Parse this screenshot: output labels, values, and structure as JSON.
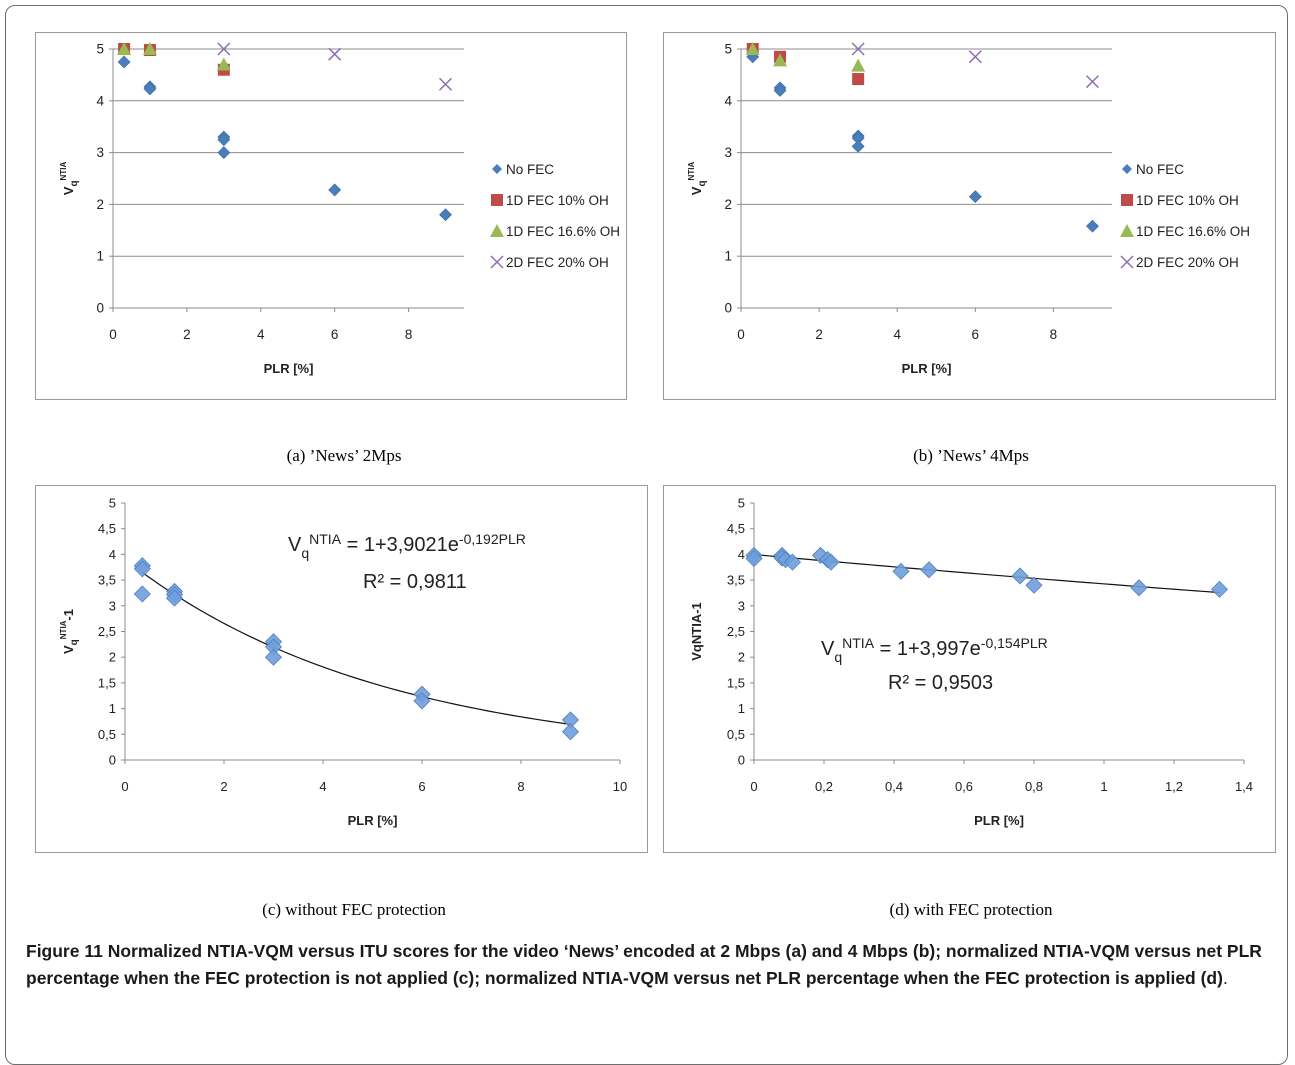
{
  "chart_data": [
    {
      "type": "scatter",
      "id": "a",
      "subcaption": "(a)  ’News’ 2Mps",
      "ylabel_main": "V",
      "ylabel_sub": "q",
      "ylabel_sup": "NTIA",
      "xlabel": "PLR [%]",
      "xlim": [
        0,
        9.5
      ],
      "ylim": [
        0,
        5
      ],
      "xticks": [
        "0",
        "2",
        "4",
        "6",
        "8"
      ],
      "xtick_values": [
        0,
        2,
        4,
        6,
        8
      ],
      "yticks": [
        "0",
        "1",
        "2",
        "3",
        "4",
        "5"
      ],
      "ytick_values": [
        0,
        1,
        2,
        3,
        4,
        5
      ],
      "grid": "horizontal",
      "legend_position": "right",
      "series": [
        {
          "name": "No FEC",
          "marker": "diamond",
          "color": "#4a7ebb",
          "points": [
            [
              0.3,
              4.75
            ],
            [
              1,
              4.27
            ],
            [
              1,
              4.23
            ],
            [
              3,
              3.3
            ],
            [
              3,
              3.25
            ],
            [
              3,
              3.0
            ],
            [
              6,
              2.28
            ],
            [
              9,
              1.8
            ]
          ]
        },
        {
          "name": "1D FEC 10% OH",
          "marker": "square",
          "color": "#be4b48",
          "points": [
            [
              0.3,
              5.0
            ],
            [
              1,
              4.98
            ],
            [
              3,
              4.6
            ]
          ]
        },
        {
          "name": "1D FEC 16.6% OH",
          "marker": "triangle",
          "color": "#98b954",
          "points": [
            [
              0.3,
              5.0
            ],
            [
              1,
              5.0
            ],
            [
              3,
              4.7
            ]
          ]
        },
        {
          "name": "2D FEC 20% OH",
          "marker": "x",
          "color": "#8c6fb0",
          "points": [
            [
              3,
              5.0
            ],
            [
              6,
              4.9
            ],
            [
              9,
              4.32
            ]
          ]
        }
      ]
    },
    {
      "type": "scatter",
      "id": "b",
      "subcaption": "(b)  ’News’ 4Mps",
      "ylabel_main": "V",
      "ylabel_sub": "q",
      "ylabel_sup": "NTIA",
      "xlabel": "PLR [%]",
      "xlim": [
        0,
        9.5
      ],
      "ylim": [
        0,
        5
      ],
      "xticks": [
        "0",
        "2",
        "4",
        "6",
        "8"
      ],
      "xtick_values": [
        0,
        2,
        4,
        6,
        8
      ],
      "yticks": [
        "0",
        "1",
        "2",
        "3",
        "4",
        "5"
      ],
      "ytick_values": [
        0,
        1,
        2,
        3,
        4,
        5
      ],
      "grid": "horizontal",
      "legend_position": "right",
      "series": [
        {
          "name": "No FEC",
          "marker": "diamond",
          "color": "#4a7ebb",
          "points": [
            [
              0.3,
              4.85
            ],
            [
              1,
              4.25
            ],
            [
              1,
              4.2
            ],
            [
              3,
              3.32
            ],
            [
              3,
              3.28
            ],
            [
              3,
              3.12
            ],
            [
              6,
              2.15
            ],
            [
              9,
              1.58
            ]
          ]
        },
        {
          "name": "1D FEC 10% OH",
          "marker": "square",
          "color": "#be4b48",
          "points": [
            [
              0.3,
              5.0
            ],
            [
              1,
              4.85
            ],
            [
              3,
              4.42
            ]
          ]
        },
        {
          "name": "1D FEC 16.6% OH",
          "marker": "triangle",
          "color": "#98b954",
          "points": [
            [
              0.3,
              5.0
            ],
            [
              1,
              4.78
            ],
            [
              3,
              4.68
            ]
          ]
        },
        {
          "name": "2D FEC 20% OH",
          "marker": "x",
          "color": "#8c6fb0",
          "points": [
            [
              3,
              5.0
            ],
            [
              6,
              4.85
            ],
            [
              9,
              4.37
            ]
          ]
        }
      ]
    },
    {
      "type": "scatter",
      "id": "c",
      "subcaption": "(c)  without FEC protection",
      "ylabel_main": "V",
      "ylabel_sub": "q",
      "ylabel_sup": "NTIA",
      "ylabel_tail": "-1",
      "xlabel": "PLR [%]",
      "xlim": [
        0,
        10
      ],
      "ylim": [
        0,
        5
      ],
      "xticks": [
        "0",
        "2",
        "4",
        "6",
        "8",
        "10"
      ],
      "xtick_values": [
        0,
        2,
        4,
        6,
        8,
        10
      ],
      "yticks": [
        "0",
        "0,5",
        "1",
        "1,5",
        "2",
        "2,5",
        "3",
        "3,5",
        "4",
        "4,5",
        "5"
      ],
      "ytick_values": [
        0,
        0.5,
        1,
        1.5,
        2,
        2.5,
        3,
        3.5,
        4,
        4.5,
        5
      ],
      "grid": "none",
      "equation_main": "V",
      "equation_sub": "q",
      "equation_sup": "NTIA",
      "equation_rest": " = 1+3,9021e",
      "equation_exp": "-0,192PLR",
      "r2": "R² = 0,9811",
      "trend": {
        "a": 3.9021,
        "b": -0.192,
        "offset": -1,
        "x_from": 0.3,
        "x_to": 9
      },
      "series": [
        {
          "name": "",
          "marker": "diamond-large",
          "color": "#6f9fdb",
          "points": [
            [
              0.35,
              3.78
            ],
            [
              0.35,
              3.72
            ],
            [
              0.35,
              3.23
            ],
            [
              1,
              3.28
            ],
            [
              1,
              3.22
            ],
            [
              1,
              3.15
            ],
            [
              3,
              2.3
            ],
            [
              3,
              2.2
            ],
            [
              3,
              2.0
            ],
            [
              6,
              1.28
            ],
            [
              6,
              1.15
            ],
            [
              9,
              0.78
            ],
            [
              9,
              0.55
            ]
          ]
        }
      ]
    },
    {
      "type": "scatter",
      "id": "d",
      "subcaption": "(d)  with FEC protection",
      "ylabel_text": "VqNTIA-1",
      "xlabel": "PLR [%]",
      "xlim": [
        0,
        1.4
      ],
      "ylim": [
        0,
        5
      ],
      "xticks": [
        "0",
        "0,2",
        "0,4",
        "0,6",
        "0,8",
        "1",
        "1,2",
        "1,4"
      ],
      "xtick_values": [
        0,
        0.2,
        0.4,
        0.6,
        0.8,
        1,
        1.2,
        1.4
      ],
      "yticks": [
        "0",
        "0,5",
        "1",
        "1,5",
        "2",
        "2,5",
        "3",
        "3,5",
        "4",
        "4,5",
        "5"
      ],
      "ytick_values": [
        0,
        0.5,
        1,
        1.5,
        2,
        2.5,
        3,
        3.5,
        4,
        4.5,
        5
      ],
      "grid": "none",
      "equation_main": "V",
      "equation_sub": "q",
      "equation_sup": "NTIA",
      "equation_rest": " = 1+3,997e",
      "equation_exp": "-0,154PLR",
      "r2": "R² = 0,9503",
      "trend": {
        "a": 3.997,
        "b": -0.154,
        "offset": -1,
        "x_from": 0,
        "x_to": 1.33
      },
      "series": [
        {
          "name": "",
          "marker": "diamond-large",
          "color": "#6f9fdb",
          "points": [
            [
              0,
              3.98
            ],
            [
              0,
              3.92
            ],
            [
              0.08,
              3.98
            ],
            [
              0.08,
              3.93
            ],
            [
              0.09,
              3.9
            ],
            [
              0.11,
              3.85
            ],
            [
              0.19,
              3.98
            ],
            [
              0.21,
              3.9
            ],
            [
              0.22,
              3.85
            ],
            [
              0.42,
              3.67
            ],
            [
              0.5,
              3.7
            ],
            [
              0.76,
              3.58
            ],
            [
              0.8,
              3.4
            ],
            [
              1.1,
              3.35
            ],
            [
              1.33,
              3.32
            ]
          ]
        }
      ]
    }
  ],
  "caption": {
    "label": "Figure 11",
    "bold_text": " Normalized NTIA-VQM versus ITU scores for the video ‘News’ encoded at 2 Mbps (a) and 4 Mbps (b); normalized NTIA-VQM versus net PLR percentage when the FEC protection is not applied (c); normalized NTIA-VQM versus net PLR percentage when the FEC protection is applied (d)",
    "end": "."
  }
}
